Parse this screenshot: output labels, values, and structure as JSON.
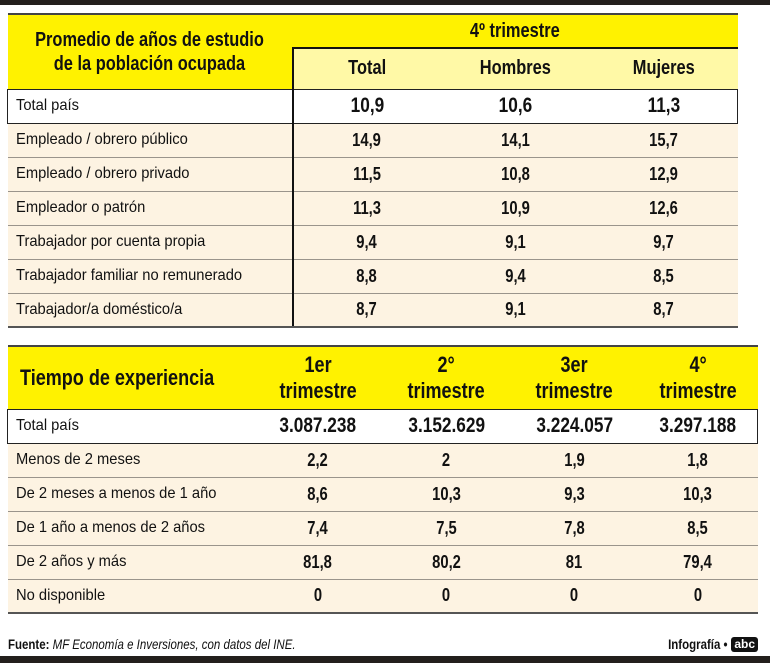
{
  "table1": {
    "title_line1": "Promedio de años de estudio",
    "title_line2": "de la población ocupada",
    "group": "4º trimestre",
    "columns": [
      "Total",
      "Hombres",
      "Mujeres"
    ],
    "rows": [
      {
        "label": "Total país",
        "values": [
          "10,9",
          "10,6",
          "11,3"
        ]
      },
      {
        "label": "Empleado / obrero público",
        "values": [
          "14,9",
          "14,1",
          "15,7"
        ]
      },
      {
        "label": "Empleado / obrero privado",
        "values": [
          "11,5",
          "10,8",
          "12,9"
        ]
      },
      {
        "label": "Empleador o patrón",
        "values": [
          "11,3",
          "10,9",
          "12,6"
        ]
      },
      {
        "label": "Trabajador por cuenta propia",
        "values": [
          "9,4",
          "9,1",
          "9,7"
        ]
      },
      {
        "label": "Trabajador familiar no remunerado",
        "values": [
          "8,8",
          "9,4",
          "8,5"
        ]
      },
      {
        "label": "Trabajador/a doméstico/a",
        "values": [
          "8,7",
          "9,1",
          "8,7"
        ]
      }
    ]
  },
  "table2": {
    "title": "Tiempo de experiencia",
    "columns": [
      {
        "l1": "1er",
        "l2": "trimestre"
      },
      {
        "l1": "2°",
        "l2": "trimestre"
      },
      {
        "l1": "3er",
        "l2": "trimestre"
      },
      {
        "l1": "4°",
        "l2": "trimestre"
      }
    ],
    "rows": [
      {
        "label": "Total país",
        "values": [
          "3.087.238",
          "3.152.629",
          "3.224.057",
          "3.297.188"
        ]
      },
      {
        "label": "Menos de 2 meses",
        "values": [
          "2,2",
          "2",
          "1,9",
          "1,8"
        ]
      },
      {
        "label": "De 2 meses a menos de 1 año",
        "values": [
          "8,6",
          "10,3",
          "9,3",
          "10,3"
        ]
      },
      {
        "label": "De 1 año a menos de 2 años",
        "values": [
          "7,4",
          "7,5",
          "7,8",
          "8,5"
        ]
      },
      {
        "label": "De 2 años y más",
        "values": [
          "81,8",
          "80,2",
          "81",
          "79,4"
        ]
      },
      {
        "label": "No disponible",
        "values": [
          "0",
          "0",
          "0",
          "0"
        ]
      }
    ]
  },
  "footer": {
    "source_label": "Fuente:",
    "source_text": "MF Economía e Inversiones, con datos del INE.",
    "credit": "Infografía •",
    "logo": "abc"
  },
  "colors": {
    "header": "#fff200",
    "subheader": "#fff9a6",
    "row": "#fdf3e2"
  }
}
